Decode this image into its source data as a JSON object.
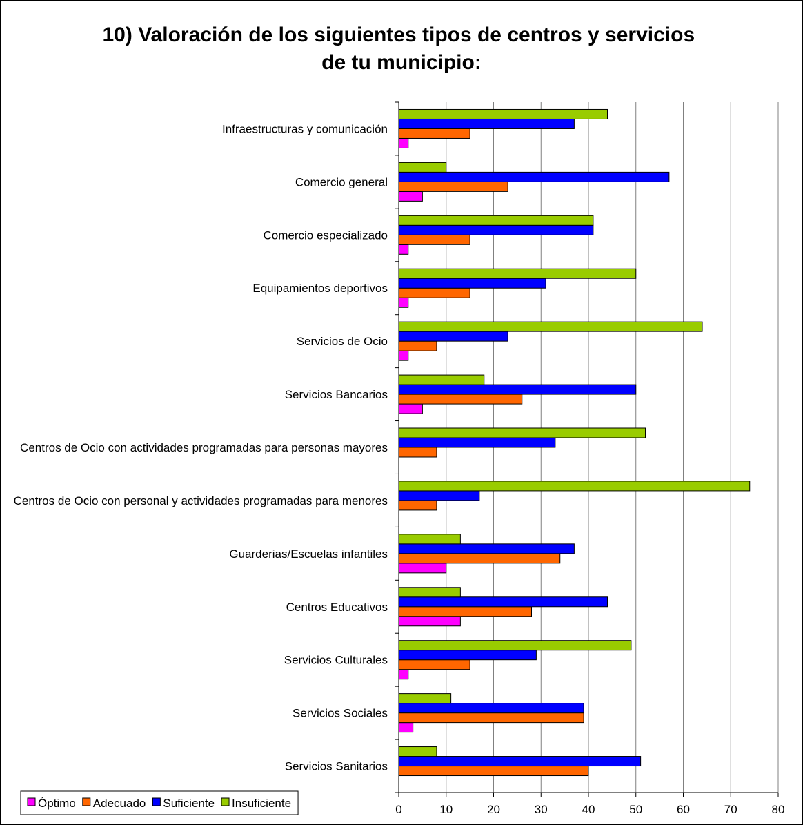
{
  "chart_data": {
    "type": "barh",
    "title": "10) Valoración de los siguientes  tipos de centros y servicios de tu municipio:",
    "categories": [
      "Infraestructuras y comunicación",
      "Comercio general",
      "Comercio especializado",
      "Equipamientos deportivos",
      "Servicios de Ocio",
      "Servicios Bancarios",
      "Centros de Ocio con actividades programadas para personas mayores",
      "Centros de Ocio con personal y actividades programadas para menores",
      "Guarderias/Escuelas infantiles",
      "Centros Educativos",
      "Servicios Culturales",
      "Servicios Sociales",
      "Servicios Sanitarios"
    ],
    "series": [
      {
        "name": "Óptimo",
        "color": "#ff00ff",
        "values": [
          2,
          5,
          2,
          2,
          2,
          5,
          0,
          0,
          10,
          13,
          2,
          3,
          0
        ]
      },
      {
        "name": "Adecuado",
        "color": "#ff6600",
        "values": [
          15,
          23,
          15,
          15,
          8,
          26,
          8,
          8,
          34,
          28,
          15,
          39,
          40
        ]
      },
      {
        "name": "Suficiente",
        "color": "#0000ff",
        "values": [
          37,
          57,
          41,
          31,
          23,
          50,
          33,
          17,
          37,
          44,
          29,
          39,
          51
        ]
      },
      {
        "name": "Insuficiente",
        "color": "#99cc00",
        "values": [
          44,
          10,
          41,
          50,
          64,
          18,
          52,
          74,
          13,
          13,
          49,
          11,
          8
        ]
      }
    ],
    "xlim": [
      0,
      80
    ],
    "xticks": [
      0,
      10,
      20,
      30,
      40,
      50,
      60,
      70,
      80
    ],
    "grid": true,
    "legend": "bottom-left"
  }
}
